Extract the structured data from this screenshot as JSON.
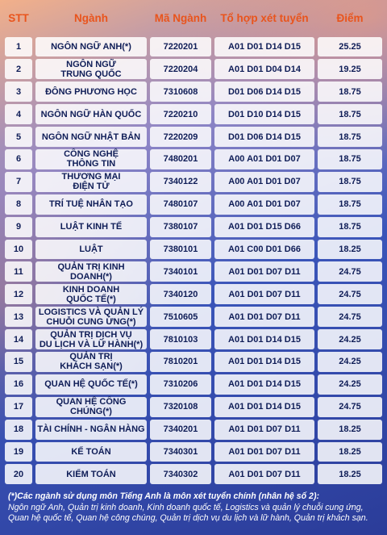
{
  "header": {
    "stt": "STT",
    "nganh": "Ngành",
    "ma_nganh": "Mã Ngành",
    "to_hop": "Tổ hợp xét tuyển",
    "diem": "Điểm"
  },
  "rows": [
    {
      "stt": "1",
      "name": "NGÔN NGỮ ANH(*)",
      "code": "7220201",
      "combo": "A01 D01 D14 D15",
      "score": "25.25"
    },
    {
      "stt": "2",
      "name": "NGÔN NGỮ\nTRUNG QUỐC",
      "code": "7220204",
      "combo": "A01 D01 D04 D14",
      "score": "19.25"
    },
    {
      "stt": "3",
      "name": "ĐÔNG PHƯƠNG HỌC",
      "code": "7310608",
      "combo": "D01 D06 D14 D15",
      "score": "18.75"
    },
    {
      "stt": "4",
      "name": "NGÔN NGỮ HÀN QUỐC",
      "code": "7220210",
      "combo": "D01 D10 D14 D15",
      "score": "18.75"
    },
    {
      "stt": "5",
      "name": "NGÔN NGỮ NHẬT BẢN",
      "code": "7220209",
      "combo": "D01 D06 D14 D15",
      "score": "18.75"
    },
    {
      "stt": "6",
      "name": "CÔNG NGHỆ\nTHÔNG TIN",
      "code": "7480201",
      "combo": "A00 A01 D01 D07",
      "score": "18.75"
    },
    {
      "stt": "7",
      "name": "THƯƠNG MẠI\nĐIỆN TỬ",
      "code": "7340122",
      "combo": "A00 A01 D01 D07",
      "score": "18.75"
    },
    {
      "stt": "8",
      "name": "TRÍ TUỆ NHÂN TẠO",
      "code": "7480107",
      "combo": "A00 A01 D01 D07",
      "score": "18.75"
    },
    {
      "stt": "9",
      "name": "LUẬT KINH TẾ",
      "code": "7380107",
      "combo": "A01 D01 D15 D66",
      "score": "18.75"
    },
    {
      "stt": "10",
      "name": "LUẬT",
      "code": "7380101",
      "combo": "A01 C00 D01 D66",
      "score": "18.25"
    },
    {
      "stt": "11",
      "name": "QUẢN TRỊ KINH DOANH(*)",
      "code": "7340101",
      "combo": "A01 D01 D07 D11",
      "score": "24.75"
    },
    {
      "stt": "12",
      "name": "KINH DOANH\nQUỐC TẾ(*)",
      "code": "7340120",
      "combo": "A01 D01 D07 D11",
      "score": "24.75"
    },
    {
      "stt": "13",
      "name": "LOGISTICS VÀ QUẢN LÝ\nCHUỖI CUNG ỨNG(*)",
      "code": "7510605",
      "combo": "A01 D01 D07 D11",
      "score": "24.75"
    },
    {
      "stt": "14",
      "name": "QUẢN TRỊ DỊCH VỤ\nDU LỊCH VÀ LỮ HÀNH(*)",
      "code": "7810103",
      "combo": "A01 D01 D14 D15",
      "score": "24.25"
    },
    {
      "stt": "15",
      "name": "QUẢN TRỊ\nKHÁCH SẠN(*)",
      "code": "7810201",
      "combo": "A01 D01 D14 D15",
      "score": "24.25"
    },
    {
      "stt": "16",
      "name": "QUAN HỆ QUỐC TẾ(*)",
      "code": "7310206",
      "combo": "A01 D01 D14 D15",
      "score": "24.25"
    },
    {
      "stt": "17",
      "name": "QUAN HỆ CÔNG CHÚNG(*)",
      "code": "7320108",
      "combo": "A01 D01 D14 D15",
      "score": "24.75"
    },
    {
      "stt": "18",
      "name": "TÀI CHÍNH - NGÂN HÀNG",
      "code": "7340201",
      "combo": "A01 D01 D07 D11",
      "score": "18.25"
    },
    {
      "stt": "19",
      "name": "KẾ TOÁN",
      "code": "7340301",
      "combo": "A01 D01 D07 D11",
      "score": "18.25"
    },
    {
      "stt": "20",
      "name": "KIỂM TOÁN",
      "code": "7340302",
      "combo": "A01 D01 D07 D11",
      "score": "18.25"
    }
  ],
  "note": {
    "line1": "(*)Các ngành sử dụng môn Tiếng Anh là môn xét tuyển chính (nhân hệ số 2):",
    "line2": "Ngôn ngữ Anh, Quản trị kinh doanh, Kinh doanh quốc tế, Logistics và quản lý chuỗi cung ứng, Quan hệ quốc tế, Quan hệ công chúng, Quản trị dịch vụ du lịch và lữ hành, Quản trị khách sạn."
  }
}
